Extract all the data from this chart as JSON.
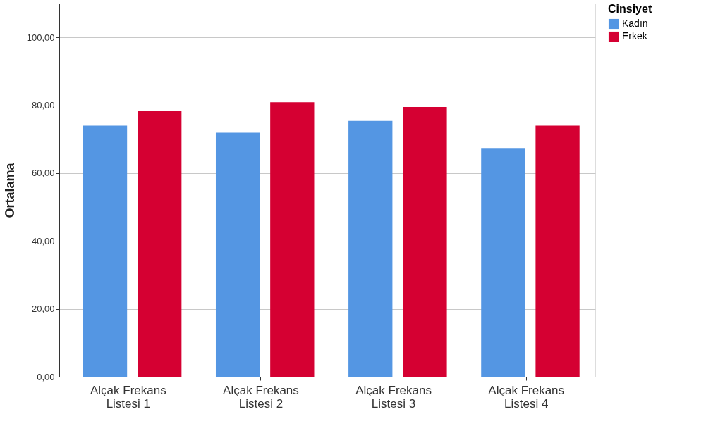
{
  "chart_data": {
    "type": "bar",
    "ylabel": "Ortalama",
    "legend_title": "Cinsiyet",
    "categories": [
      "Alçak Frekans Listesi 1",
      "Alçak Frekans Listesi 2",
      "Alçak Frekans Listesi 3",
      "Alçak Frekans Listesi 4"
    ],
    "series": [
      {
        "name": "Kadın",
        "color": "#5496e3",
        "values": [
          74.0,
          71.9,
          75.4,
          67.4
        ]
      },
      {
        "name": "Erkek",
        "color": "#d50032",
        "values": [
          78.4,
          80.9,
          79.5,
          74.0
        ]
      }
    ],
    "ylim": [
      0,
      110
    ],
    "yticks": [
      {
        "value": 0,
        "label": "0,00"
      },
      {
        "value": 20,
        "label": "20,00"
      },
      {
        "value": 40,
        "label": "40,00"
      },
      {
        "value": 60,
        "label": "60,00"
      },
      {
        "value": 80,
        "label": "80,00"
      },
      {
        "value": 100,
        "label": "100,00"
      }
    ],
    "grid": "y",
    "legend": "top right"
  }
}
